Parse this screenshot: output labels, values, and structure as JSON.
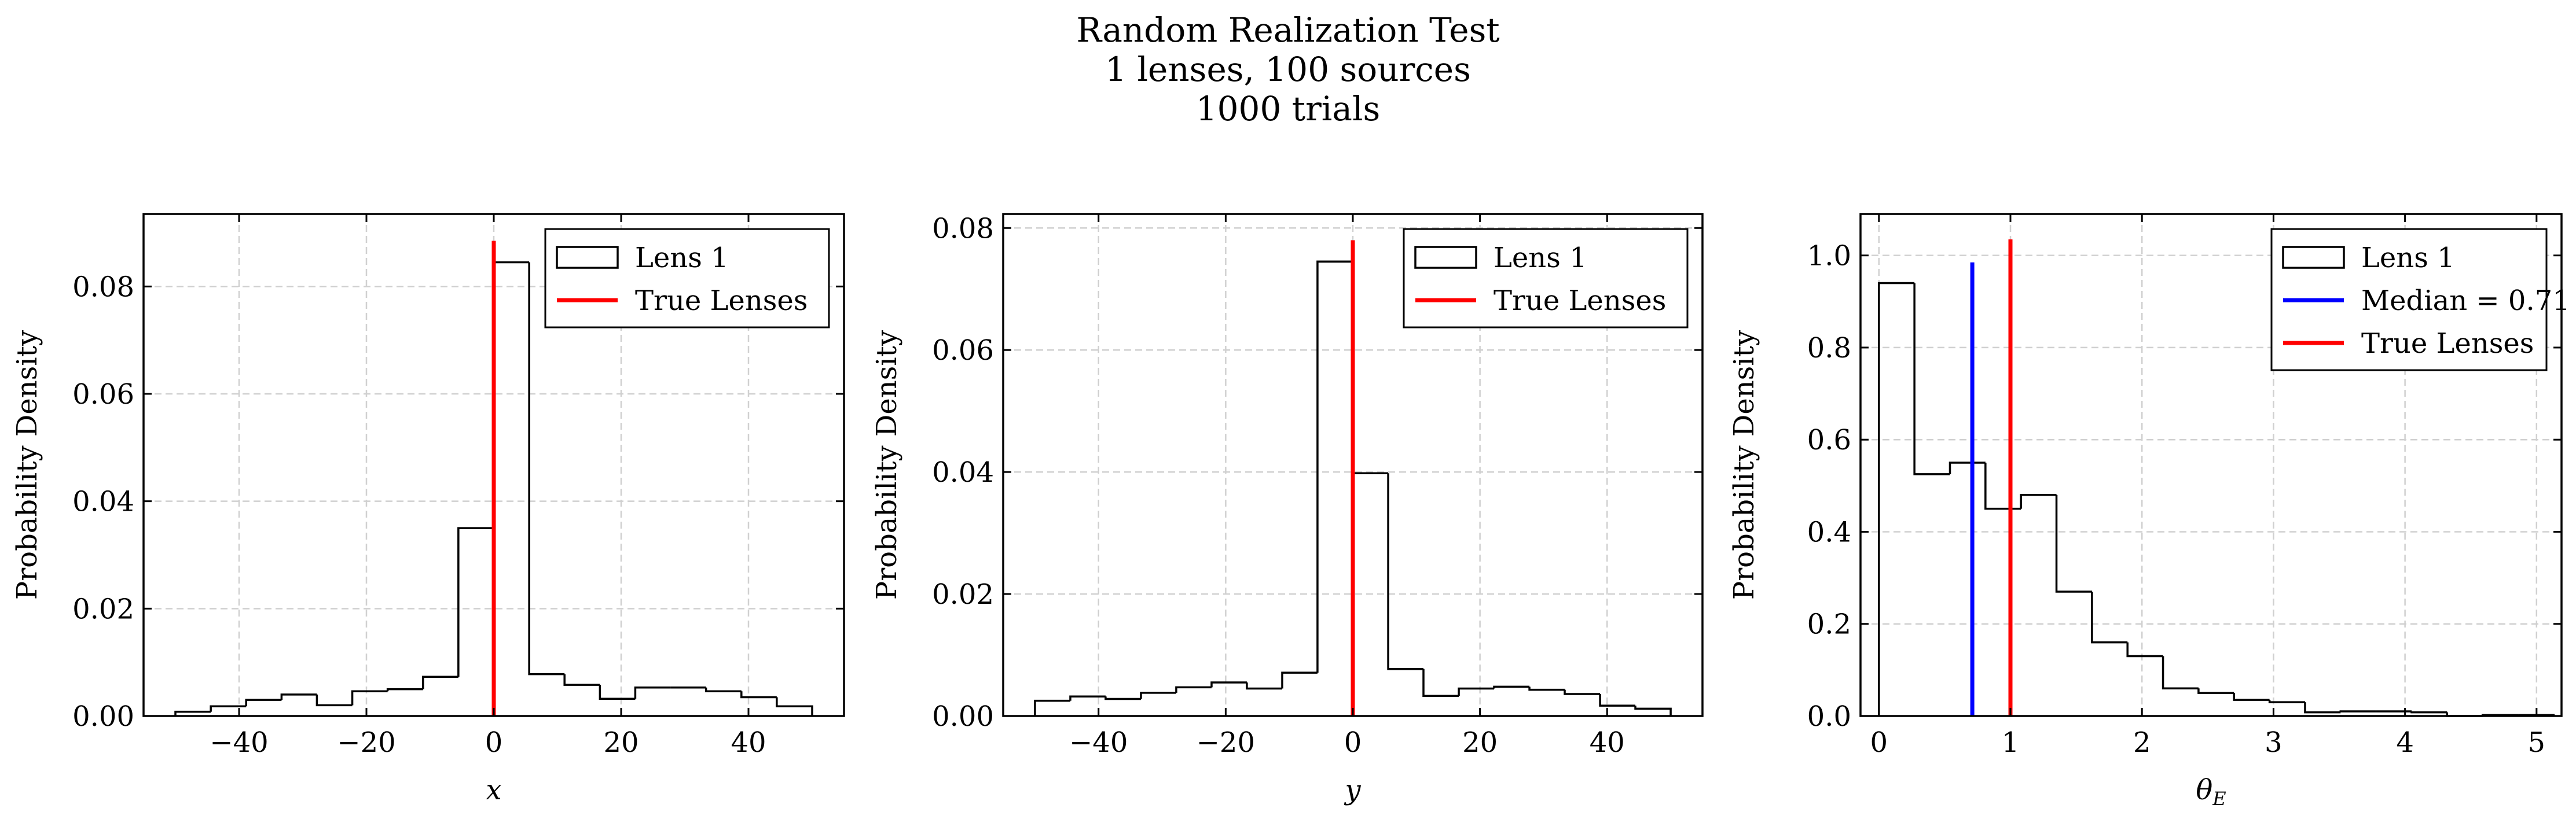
{
  "figure": {
    "title_lines": [
      "Random Realization Test",
      "1 lenses, 100 sources",
      "1000 trials"
    ]
  },
  "chart_data": [
    {
      "type": "histogram",
      "xlabel": "x",
      "ylabel": "Probability Density",
      "xlim": [
        -55,
        55
      ],
      "ylim": [
        0,
        0.0935
      ],
      "xticks": [
        -40,
        -20,
        0,
        20,
        40
      ],
      "xtick_labels": [
        "−40",
        "−20",
        "0",
        "20",
        "40"
      ],
      "yticks": [
        0.0,
        0.02,
        0.04,
        0.06,
        0.08
      ],
      "ytick_labels": [
        "0.00",
        "0.02",
        "0.04",
        "0.06",
        "0.08"
      ],
      "grid": true,
      "legend_position": "top-right",
      "series": [
        {
          "name": "Lens 1",
          "kind": "step-histogram",
          "color": "#000000",
          "bin_edges": [
            -50,
            -44.44,
            -38.89,
            -33.33,
            -27.78,
            -22.22,
            -16.67,
            -11.11,
            -5.56,
            0,
            5.56,
            11.11,
            16.67,
            22.22,
            27.78,
            33.33,
            38.89,
            44.44,
            50
          ],
          "values": [
            0.0008,
            0.0018,
            0.003,
            0.004,
            0.002,
            0.0046,
            0.005,
            0.0073,
            0.035,
            0.0845,
            0.0078,
            0.0058,
            0.0032,
            0.0053,
            0.0053,
            0.0046,
            0.0035,
            0.0018
          ]
        },
        {
          "name": "True Lenses",
          "kind": "vertical-line",
          "color": "#ff0000",
          "x": 0,
          "y_top": 0.0885
        }
      ]
    },
    {
      "type": "histogram",
      "xlabel": "y",
      "ylabel": "Probability Density",
      "xlim": [
        -55,
        55
      ],
      "ylim": [
        0,
        0.0823
      ],
      "xticks": [
        -40,
        -20,
        0,
        20,
        40
      ],
      "xtick_labels": [
        "−40",
        "−20",
        "0",
        "20",
        "40"
      ],
      "yticks": [
        0.0,
        0.02,
        0.04,
        0.06,
        0.08
      ],
      "ytick_labels": [
        "0.00",
        "0.02",
        "0.04",
        "0.06",
        "0.08"
      ],
      "grid": true,
      "legend_position": "top-right",
      "series": [
        {
          "name": "Lens 1",
          "kind": "step-histogram",
          "color": "#000000",
          "bin_edges": [
            -50,
            -44.44,
            -38.89,
            -33.33,
            -27.78,
            -22.22,
            -16.67,
            -11.11,
            -5.56,
            0,
            5.56,
            11.11,
            16.67,
            22.22,
            27.78,
            33.33,
            38.89,
            44.44,
            50
          ],
          "values": [
            0.0025,
            0.0032,
            0.0028,
            0.0038,
            0.0047,
            0.0055,
            0.0045,
            0.0071,
            0.0745,
            0.0398,
            0.0077,
            0.0033,
            0.0045,
            0.0048,
            0.0043,
            0.0036,
            0.0017,
            0.0012
          ]
        },
        {
          "name": "True Lenses",
          "kind": "vertical-line",
          "color": "#ff0000",
          "x": 0,
          "y_top": 0.078
        }
      ]
    },
    {
      "type": "histogram",
      "xlabel": "θE",
      "ylabel": "Probability Density",
      "xlim": [
        -0.14,
        5.19
      ],
      "ylim": [
        0,
        1.09
      ],
      "xticks": [
        0,
        1,
        2,
        3,
        4,
        5
      ],
      "xtick_labels": [
        "0",
        "1",
        "2",
        "3",
        "4",
        "5"
      ],
      "yticks": [
        0.0,
        0.2,
        0.4,
        0.6,
        0.8,
        1.0
      ],
      "ytick_labels": [
        "0.0",
        "0.2",
        "0.4",
        "0.6",
        "0.8",
        "1.0"
      ],
      "grid": true,
      "legend_position": "top-right",
      "series": [
        {
          "name": "Lens 1",
          "kind": "step-histogram",
          "color": "#000000",
          "bin_edges": [
            0,
            0.27,
            0.54,
            0.81,
            1.08,
            1.35,
            1.62,
            1.89,
            2.16,
            2.43,
            2.7,
            2.97,
            3.24,
            3.51,
            3.78,
            4.05,
            4.32,
            4.59,
            4.86,
            5.13
          ],
          "values": [
            0.94,
            0.525,
            0.55,
            0.45,
            0.48,
            0.27,
            0.16,
            0.13,
            0.06,
            0.05,
            0.035,
            0.03,
            0.008,
            0.01,
            0.01,
            0.008,
            0.0,
            0.002,
            0.002
          ]
        },
        {
          "name": "Median = 0.71",
          "kind": "vertical-line",
          "color": "#0000ff",
          "x": 0.71,
          "y_top": 0.985
        },
        {
          "name": "True Lenses",
          "kind": "vertical-line",
          "color": "#ff0000",
          "x": 1.0,
          "y_top": 1.035
        }
      ]
    }
  ]
}
